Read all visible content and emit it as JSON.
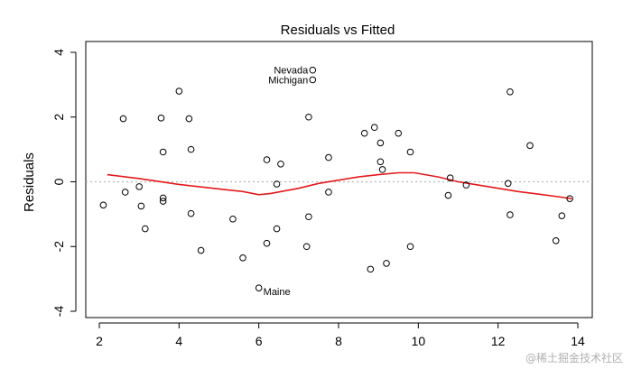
{
  "chart_data": {
    "type": "scatter",
    "title": "Residuals vs Fitted",
    "xlabel": "",
    "ylabel": "Residuals",
    "xlim": [
      2,
      14
    ],
    "ylim": [
      -4,
      4
    ],
    "x_ticks": [
      "2",
      "4",
      "6",
      "8",
      "10",
      "12",
      "14"
    ],
    "y_ticks": [
      "-4",
      "-2",
      "0",
      "2",
      "4"
    ],
    "reference_line_y": 0,
    "points": [
      {
        "x": 2.1,
        "y": -0.72
      },
      {
        "x": 2.6,
        "y": 1.95
      },
      {
        "x": 2.65,
        "y": -0.32
      },
      {
        "x": 3.0,
        "y": -0.15
      },
      {
        "x": 3.05,
        "y": -0.75
      },
      {
        "x": 3.15,
        "y": -1.45
      },
      {
        "x": 3.55,
        "y": 1.97
      },
      {
        "x": 3.6,
        "y": 0.92
      },
      {
        "x": 3.6,
        "y": -0.5
      },
      {
        "x": 3.6,
        "y": -0.6
      },
      {
        "x": 4.0,
        "y": 2.8
      },
      {
        "x": 4.25,
        "y": 1.95
      },
      {
        "x": 4.3,
        "y": 1.0
      },
      {
        "x": 4.3,
        "y": -0.98
      },
      {
        "x": 4.55,
        "y": -2.12
      },
      {
        "x": 5.35,
        "y": -1.15
      },
      {
        "x": 5.6,
        "y": -2.35
      },
      {
        "x": 6.0,
        "y": -3.28
      },
      {
        "x": 6.2,
        "y": 0.68
      },
      {
        "x": 6.2,
        "y": -1.9
      },
      {
        "x": 6.45,
        "y": -1.45
      },
      {
        "x": 6.45,
        "y": -0.07
      },
      {
        "x": 6.55,
        "y": 0.55
      },
      {
        "x": 7.2,
        "y": -2.0
      },
      {
        "x": 7.25,
        "y": 2.0
      },
      {
        "x": 7.25,
        "y": -1.08
      },
      {
        "x": 7.35,
        "y": 3.45
      },
      {
        "x": 7.35,
        "y": 3.15
      },
      {
        "x": 7.75,
        "y": 0.75
      },
      {
        "x": 7.75,
        "y": -0.32
      },
      {
        "x": 8.65,
        "y": 1.5
      },
      {
        "x": 8.8,
        "y": -2.7
      },
      {
        "x": 8.9,
        "y": 1.68
      },
      {
        "x": 9.05,
        "y": 1.2
      },
      {
        "x": 9.05,
        "y": 0.62
      },
      {
        "x": 9.1,
        "y": 0.38
      },
      {
        "x": 9.2,
        "y": -2.52
      },
      {
        "x": 9.5,
        "y": 1.5
      },
      {
        "x": 9.8,
        "y": 0.92
      },
      {
        "x": 9.8,
        "y": -2.0
      },
      {
        "x": 10.75,
        "y": -0.42
      },
      {
        "x": 10.8,
        "y": 0.12
      },
      {
        "x": 11.2,
        "y": -0.1
      },
      {
        "x": 12.25,
        "y": -0.05
      },
      {
        "x": 12.3,
        "y": 2.78
      },
      {
        "x": 12.3,
        "y": -1.02
      },
      {
        "x": 12.8,
        "y": 1.12
      },
      {
        "x": 13.45,
        "y": -1.82
      },
      {
        "x": 13.6,
        "y": -1.05
      },
      {
        "x": 13.8,
        "y": -0.52
      }
    ],
    "labeled_points": [
      {
        "label": "Nevada",
        "x": 7.35,
        "y": 3.45
      },
      {
        "label": "Michigan",
        "x": 7.35,
        "y": 3.15
      },
      {
        "label": "Maine",
        "x": 6.0,
        "y": -3.28
      }
    ],
    "smooth_line": [
      {
        "x": 2.2,
        "y": 0.22
      },
      {
        "x": 3.0,
        "y": 0.1
      },
      {
        "x": 4.0,
        "y": -0.08
      },
      {
        "x": 5.0,
        "y": -0.22
      },
      {
        "x": 5.6,
        "y": -0.3
      },
      {
        "x": 6.0,
        "y": -0.4
      },
      {
        "x": 6.3,
        "y": -0.36
      },
      {
        "x": 7.0,
        "y": -0.2
      },
      {
        "x": 7.5,
        "y": -0.05
      },
      {
        "x": 8.0,
        "y": 0.05
      },
      {
        "x": 8.5,
        "y": 0.15
      },
      {
        "x": 9.0,
        "y": 0.22
      },
      {
        "x": 9.5,
        "y": 0.28
      },
      {
        "x": 9.9,
        "y": 0.28
      },
      {
        "x": 10.5,
        "y": 0.15
      },
      {
        "x": 11.0,
        "y": 0.0
      },
      {
        "x": 11.5,
        "y": -0.1
      },
      {
        "x": 12.0,
        "y": -0.2
      },
      {
        "x": 12.5,
        "y": -0.3
      },
      {
        "x": 13.0,
        "y": -0.38
      },
      {
        "x": 13.5,
        "y": -0.46
      },
      {
        "x": 13.85,
        "y": -0.52
      }
    ],
    "colors": {
      "points": "#000000",
      "smooth": "#e31a1c",
      "zero_line": "#b8b8b8"
    }
  },
  "watermark": "@稀土掘金技术社区"
}
